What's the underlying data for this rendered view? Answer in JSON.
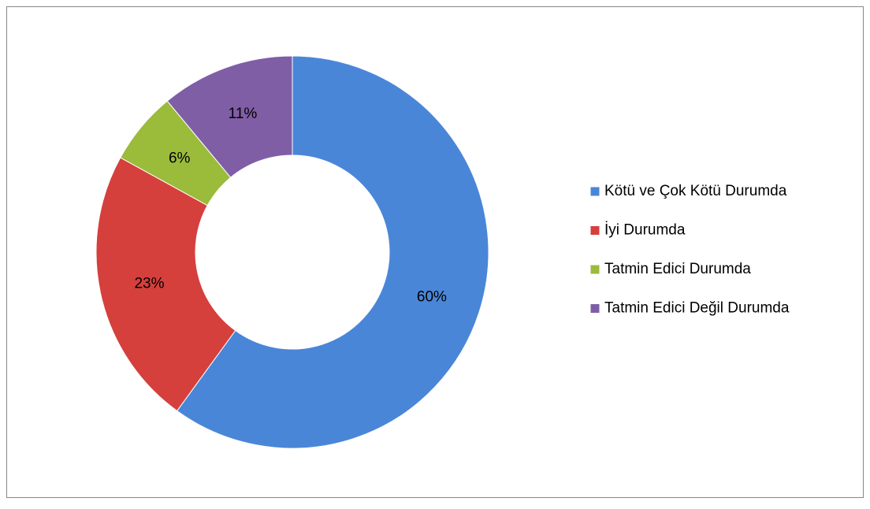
{
  "chart_data": {
    "type": "donut",
    "categories": [
      "Kötü ve Çok Kötü Durumda",
      "İyi Durumda",
      "Tatmin Edici Durumda",
      "Tatmin Edici Değil Durumda"
    ],
    "values": [
      60,
      23,
      6,
      11
    ],
    "value_labels": [
      "60%",
      "23%",
      "6%",
      "11%"
    ],
    "colors": [
      "#4a86d8",
      "#d5403c",
      "#9bbb3b",
      "#7f5ea6"
    ],
    "legend": "right"
  }
}
